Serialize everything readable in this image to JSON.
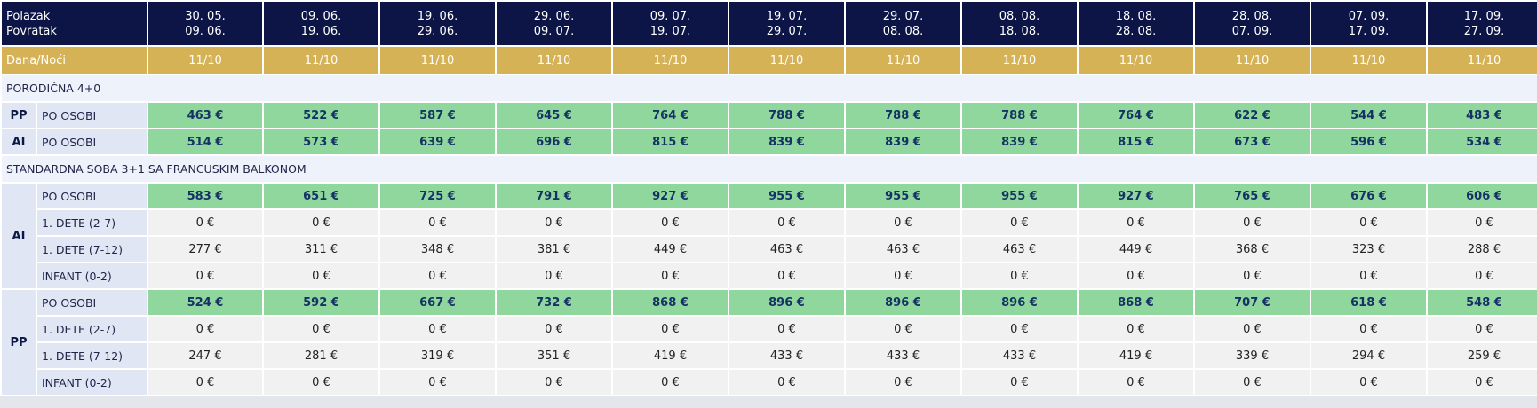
{
  "header": {
    "departure_label": "Polazak",
    "return_label": "Povratak",
    "nights_label": "Dana/Noći",
    "periods": [
      {
        "from": "30. 05.",
        "to": "09. 06.",
        "nights": "11/10"
      },
      {
        "from": "09. 06.",
        "to": "19. 06.",
        "nights": "11/10"
      },
      {
        "from": "19. 06.",
        "to": "29. 06.",
        "nights": "11/10"
      },
      {
        "from": "29. 06.",
        "to": "09. 07.",
        "nights": "11/10"
      },
      {
        "from": "09. 07.",
        "to": "19. 07.",
        "nights": "11/10"
      },
      {
        "from": "19. 07.",
        "to": "29. 07.",
        "nights": "11/10"
      },
      {
        "from": "29. 07.",
        "to": "08. 08.",
        "nights": "11/10"
      },
      {
        "from": "08. 08.",
        "to": "18. 08.",
        "nights": "11/10"
      },
      {
        "from": "18. 08.",
        "to": "28. 08.",
        "nights": "11/10"
      },
      {
        "from": "28. 08.",
        "to": "07. 09.",
        "nights": "11/10"
      },
      {
        "from": "07. 09.",
        "to": "17. 09.",
        "nights": "11/10"
      },
      {
        "from": "17. 09.",
        "to": "27. 09.",
        "nights": "11/10"
      }
    ]
  },
  "sections": [
    {
      "title": "PORODIČNA 4+0",
      "groups": [
        {
          "board": "PP",
          "rows": [
            {
              "label": "PO OSOBI",
              "highlight": true,
              "values": [
                "463 €",
                "522 €",
                "587 €",
                "645 €",
                "764 €",
                "788 €",
                "788 €",
                "788 €",
                "764 €",
                "622 €",
                "544 €",
                "483 €"
              ]
            }
          ]
        },
        {
          "board": "AI",
          "rows": [
            {
              "label": "PO OSOBI",
              "highlight": true,
              "values": [
                "514 €",
                "573 €",
                "639 €",
                "696 €",
                "815 €",
                "839 €",
                "839 €",
                "839 €",
                "815 €",
                "673 €",
                "596 €",
                "534 €"
              ]
            }
          ]
        }
      ]
    },
    {
      "title": "STANDARDNA SOBA 3+1 SA FRANCUSKIM BALKONOM",
      "groups": [
        {
          "board": "AI",
          "rows": [
            {
              "label": "PO OSOBI",
              "highlight": true,
              "values": [
                "583 €",
                "651 €",
                "725 €",
                "791 €",
                "927 €",
                "955 €",
                "955 €",
                "955 €",
                "927 €",
                "765 €",
                "676 €",
                "606 €"
              ]
            },
            {
              "label": "1. DETE (2-7)",
              "highlight": false,
              "values": [
                "0 €",
                "0 €",
                "0 €",
                "0 €",
                "0 €",
                "0 €",
                "0 €",
                "0 €",
                "0 €",
                "0 €",
                "0 €",
                "0 €"
              ]
            },
            {
              "label": "1. DETE (7-12)",
              "highlight": false,
              "values": [
                "277 €",
                "311 €",
                "348 €",
                "381 €",
                "449 €",
                "463 €",
                "463 €",
                "463 €",
                "449 €",
                "368 €",
                "323 €",
                "288 €"
              ]
            },
            {
              "label": "INFANT (0-2)",
              "highlight": false,
              "values": [
                "0 €",
                "0 €",
                "0 €",
                "0 €",
                "0 €",
                "0 €",
                "0 €",
                "0 €",
                "0 €",
                "0 €",
                "0 €",
                "0 €"
              ]
            }
          ]
        },
        {
          "board": "PP",
          "rows": [
            {
              "label": "PO OSOBI",
              "highlight": true,
              "values": [
                "524 €",
                "592 €",
                "667 €",
                "732 €",
                "868 €",
                "896 €",
                "896 €",
                "896 €",
                "868 €",
                "707 €",
                "618 €",
                "548 €"
              ]
            },
            {
              "label": "1. DETE (2-7)",
              "highlight": false,
              "values": [
                "0 €",
                "0 €",
                "0 €",
                "0 €",
                "0 €",
                "0 €",
                "0 €",
                "0 €",
                "0 €",
                "0 €",
                "0 €",
                "0 €"
              ]
            },
            {
              "label": "1. DETE (7-12)",
              "highlight": false,
              "values": [
                "247 €",
                "281 €",
                "319 €",
                "351 €",
                "419 €",
                "433 €",
                "433 €",
                "433 €",
                "419 €",
                "339 €",
                "294 €",
                "259 €"
              ]
            },
            {
              "label": "INFANT (0-2)",
              "highlight": false,
              "values": [
                "0 €",
                "0 €",
                "0 €",
                "0 €",
                "0 €",
                "0 €",
                "0 €",
                "0 €",
                "0 €",
                "0 €",
                "0 €",
                "0 €"
              ]
            }
          ]
        }
      ]
    }
  ]
}
